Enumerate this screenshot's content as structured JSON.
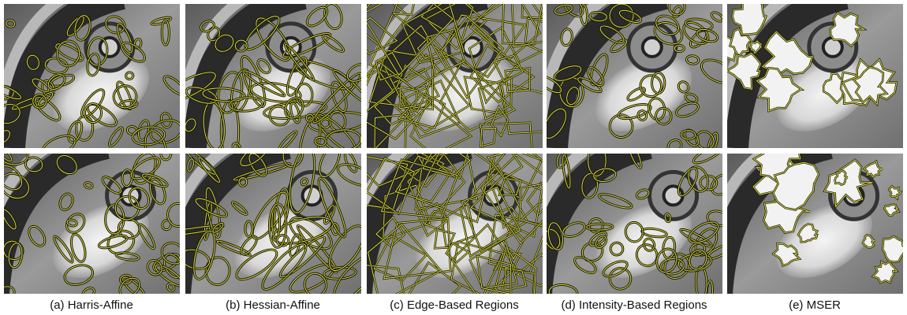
{
  "captions": [
    "(a) Harris-Affine",
    "(b) Hessian-Affine",
    "(c) Edge-Based Regions",
    "(d) Intensity-Based Regions",
    "(e) MSER"
  ]
}
